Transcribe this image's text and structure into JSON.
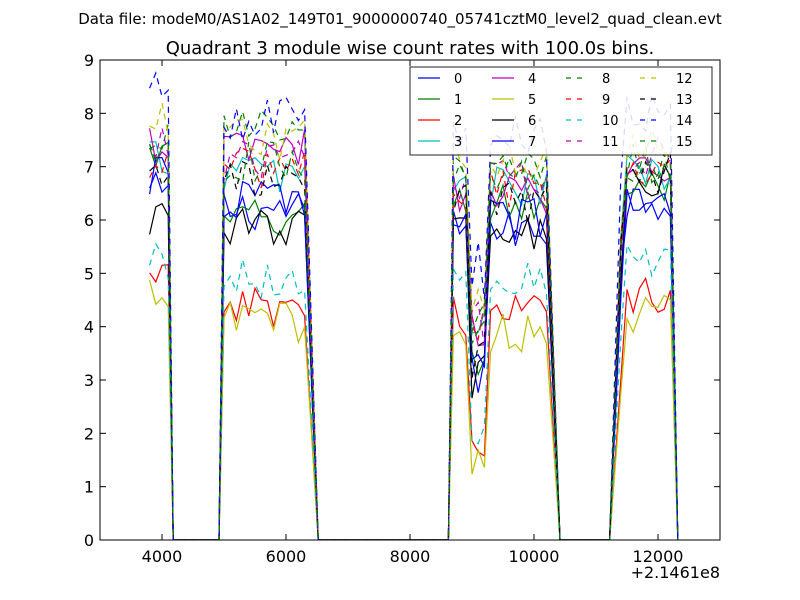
{
  "figure": {
    "suptitle": "Data file: modeM0/AS1A02_149T01_9000000740_05741cztM0_level2_quad_clean.evt"
  },
  "chart_data": {
    "type": "line",
    "title": "Quadrant 3 module wise count rates with 100.0s bins.",
    "xlabel": "",
    "ylabel": "",
    "xlim": [
      3000,
      13000
    ],
    "ylim": [
      0,
      9
    ],
    "x_ticks": [
      4000,
      6000,
      8000,
      10000,
      12000
    ],
    "x_tick_labels": [
      "4000",
      "6000",
      "8000",
      "10000",
      "12000"
    ],
    "y_ticks": [
      0,
      1,
      2,
      3,
      4,
      5,
      6,
      7,
      8,
      9
    ],
    "y_tick_labels": [
      "0",
      "1",
      "2",
      "3",
      "4",
      "5",
      "6",
      "7",
      "8",
      "9"
    ],
    "x_offset_label": "+2.1461e8",
    "grid": false,
    "legend_position": "top-right",
    "legend_columns": 4,
    "segments": [
      {
        "start": 3800,
        "end": 4100,
        "to_zero_at": 4180
      },
      {
        "start": 5000,
        "end": 6300,
        "from_zero_at": 4920,
        "to_zero_at": 6520
      },
      {
        "start": 8700,
        "end": 10200,
        "from_zero_at": 8620,
        "to_zero_at": 10420
      },
      {
        "start": 11400,
        "end": 12200,
        "from_zero_at": 11220,
        "to_zero_at": 12320
      }
    ],
    "series": [
      {
        "name": "0",
        "color": "#0000ff",
        "dash": "solid",
        "levels": [
          6.5,
          6.2,
          5.8,
          6.4
        ]
      },
      {
        "name": "1",
        "color": "#008000",
        "dash": "solid",
        "levels": [
          7.2,
          6.0,
          6.3,
          6.6
        ]
      },
      {
        "name": "2",
        "color": "#ff0000",
        "dash": "solid",
        "levels": [
          4.8,
          4.4,
          4.2,
          4.6
        ]
      },
      {
        "name": "3",
        "color": "#00bfbf",
        "dash": "solid",
        "levels": [
          7.2,
          6.9,
          6.6,
          6.9
        ]
      },
      {
        "name": "4",
        "color": "#bf00bf",
        "dash": "solid",
        "levels": [
          7.4,
          7.3,
          6.5,
          7.1
        ]
      },
      {
        "name": "5",
        "color": "#bfbf00",
        "dash": "solid",
        "levels": [
          4.5,
          4.1,
          3.9,
          4.2
        ]
      },
      {
        "name": "6",
        "color": "#000000",
        "dash": "solid",
        "levels": [
          6.1,
          5.9,
          5.7,
          6.7
        ]
      },
      {
        "name": "7",
        "color": "#0000ff",
        "dash": "solid",
        "levels": [
          6.8,
          6.4,
          6.0,
          6.2
        ]
      },
      {
        "name": "8",
        "color": "#008000",
        "dash": "dashed",
        "levels": [
          7.6,
          7.7,
          6.9,
          7.0
        ]
      },
      {
        "name": "9",
        "color": "#ff0000",
        "dash": "dashed",
        "levels": [
          7.0,
          7.0,
          6.6,
          6.8
        ]
      },
      {
        "name": "10",
        "color": "#00bfbf",
        "dash": "dashed",
        "levels": [
          5.3,
          4.9,
          4.8,
          5.3
        ]
      },
      {
        "name": "11",
        "color": "#bf00bf",
        "dash": "dashed",
        "levels": [
          7.5,
          7.1,
          6.8,
          7.2
        ]
      },
      {
        "name": "12",
        "color": "#bfbf00",
        "dash": "dashed",
        "levels": [
          7.8,
          7.5,
          7.2,
          7.3
        ]
      },
      {
        "name": "13",
        "color": "#000000",
        "dash": "dashed",
        "levels": [
          6.9,
          6.7,
          6.3,
          6.9
        ]
      },
      {
        "name": "14",
        "color": "#0000ff",
        "dash": "dashed",
        "levels": [
          8.4,
          7.9,
          7.6,
          8.0
        ]
      },
      {
        "name": "15",
        "color": "#008000",
        "dash": "dashed",
        "levels": [
          7.3,
          7.1,
          6.9,
          7.1
        ]
      }
    ]
  }
}
